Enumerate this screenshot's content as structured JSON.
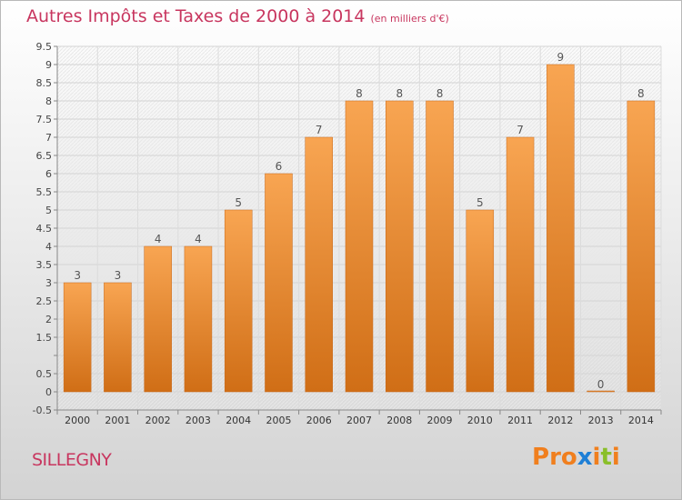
{
  "header": {
    "title": "Autres Impôts et Taxes de 2000 à 2014",
    "subtitle": "(en milliers d'€)"
  },
  "footer": {
    "commune": "SILLEGNY",
    "logo_text": "Proxiti",
    "logo_colors": [
      "#f07f1e",
      "#f07f1e",
      "#f07f1e",
      "#1e7fd6",
      "#f07f1e",
      "#8abf2a",
      "#f07f1e"
    ]
  },
  "chart_data": {
    "type": "bar",
    "categories": [
      "2000",
      "2001",
      "2002",
      "2003",
      "2004",
      "2005",
      "2006",
      "2007",
      "2008",
      "2009",
      "2010",
      "2011",
      "2012",
      "2013",
      "2014"
    ],
    "values": [
      3,
      3,
      4,
      4,
      5,
      6,
      7,
      8,
      8,
      8,
      5,
      7,
      9,
      0,
      8
    ],
    "data_labels": [
      "3",
      "3",
      "4",
      "4",
      "5",
      "6",
      "7",
      "8",
      "8",
      "8",
      "5",
      "7",
      "9",
      "0",
      "8"
    ],
    "title": "Autres Impôts et Taxes de 2000 à 2014",
    "xlabel": "",
    "ylabel": "",
    "ylim": [
      -0.5,
      9.5
    ],
    "yticks": [
      -0.5,
      0,
      0.5,
      1,
      1.5,
      2,
      2.5,
      3,
      3.5,
      4,
      4.5,
      5,
      5.5,
      6,
      6.5,
      7,
      7.5,
      8,
      8.5,
      9,
      9.5
    ],
    "ytick_labels": [
      "-0.5",
      "0",
      "0.5",
      "",
      "1.5",
      "2",
      "2.5",
      "3",
      "3.5",
      "4",
      "4.5",
      "5",
      "5.5",
      "6",
      "6.5",
      "7",
      "7.5",
      "8",
      "8.5",
      "9",
      "9.5"
    ],
    "grid": true,
    "bar_color_top": "#f8a552",
    "bar_color_bottom": "#d06e16"
  }
}
